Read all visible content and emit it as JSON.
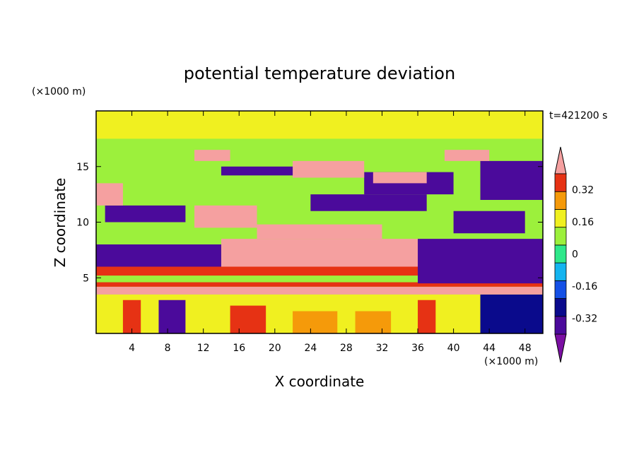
{
  "chart_data": {
    "type": "heatmap",
    "title": "potential temperature deviation",
    "xlabel": "X coordinate",
    "ylabel": "Z coordinate",
    "x_unit": "(×1000 m)",
    "y_unit": "(×1000 m)",
    "time_label": "t=421200 s",
    "xlim": [
      0,
      50
    ],
    "ylim": [
      0,
      20
    ],
    "x_ticks": [
      4,
      8,
      12,
      16,
      20,
      24,
      28,
      32,
      36,
      40,
      44,
      48
    ],
    "y_ticks": [
      5,
      10,
      15
    ],
    "colorbar": {
      "levels": [
        -0.4,
        -0.32,
        -0.24,
        -0.16,
        -0.08,
        0,
        0.08,
        0.16,
        0.24,
        0.32,
        0.4
      ],
      "colors": [
        "#7b0fa3",
        "#4b0a9b",
        "#0a0a8c",
        "#1450e6",
        "#14b4f0",
        "#2ee88a",
        "#9cf03c",
        "#f0f020",
        "#f59a0a",
        "#e63214",
        "#f5a0a0"
      ],
      "labels": [
        "0.32",
        "0.16",
        "0",
        "-0.16",
        "-0.32"
      ],
      "label_values": [
        0.32,
        0.16,
        0,
        -0.16,
        -0.32
      ],
      "extend": "both"
    },
    "regions": [
      {
        "x0": 0,
        "x1": 50,
        "z0": 0,
        "z1": 20,
        "value": 0.02
      },
      {
        "x0": 0,
        "x1": 50,
        "z0": 0,
        "z1": 3.5,
        "value": 0.1
      },
      {
        "x0": 3,
        "x1": 5,
        "z0": 0,
        "z1": 3,
        "value": 0.3
      },
      {
        "x0": 15,
        "x1": 19,
        "z0": 0,
        "z1": 2.5,
        "value": 0.3
      },
      {
        "x0": 36,
        "x1": 38,
        "z0": 0,
        "z1": 3,
        "value": 0.3
      },
      {
        "x0": 22,
        "x1": 27,
        "z0": 0,
        "z1": 2,
        "value": 0.18
      },
      {
        "x0": 29,
        "x1": 33,
        "z0": 0,
        "z1": 2,
        "value": 0.18
      },
      {
        "x0": 7,
        "x1": 10,
        "z0": 0,
        "z1": 3,
        "value": -0.36
      },
      {
        "x0": 43,
        "x1": 50,
        "z0": 0,
        "z1": 3.5,
        "value": -0.3
      },
      {
        "x0": 0,
        "x1": 50,
        "z0": 3.5,
        "z1": 4.2,
        "value": 0.42
      },
      {
        "x0": 0,
        "x1": 50,
        "z0": 4.2,
        "z1": 4.6,
        "value": 0.28
      },
      {
        "x0": 0,
        "x1": 50,
        "z0": 5.2,
        "z1": 6.0,
        "value": 0.28
      },
      {
        "x0": 14,
        "x1": 44,
        "z0": 6.0,
        "z1": 8.5,
        "value": 0.42
      },
      {
        "x0": 18,
        "x1": 32,
        "z0": 8.5,
        "z1": 9.8,
        "value": 0.42
      },
      {
        "x0": 11,
        "x1": 18,
        "z0": 9.5,
        "z1": 11.5,
        "value": 0.42
      },
      {
        "x0": 0,
        "x1": 14,
        "z0": 6.0,
        "z1": 8.0,
        "value": -0.36
      },
      {
        "x0": 36,
        "x1": 50,
        "z0": 4.5,
        "z1": 8.5,
        "value": -0.36
      },
      {
        "x0": 1,
        "x1": 10,
        "z0": 10.0,
        "z1": 11.5,
        "value": -0.36
      },
      {
        "x0": 24,
        "x1": 37,
        "z0": 11.0,
        "z1": 12.5,
        "value": -0.36
      },
      {
        "x0": 40,
        "x1": 48,
        "z0": 9.0,
        "z1": 11.0,
        "value": -0.36
      },
      {
        "x0": 30,
        "x1": 40,
        "z0": 12.5,
        "z1": 14.5,
        "value": -0.36
      },
      {
        "x0": 43,
        "x1": 50,
        "z0": 12.0,
        "z1": 15.5,
        "value": -0.36
      },
      {
        "x0": 14,
        "x1": 23,
        "z0": 14.2,
        "z1": 15.0,
        "value": -0.36
      },
      {
        "x0": 22,
        "x1": 30,
        "z0": 14.0,
        "z1": 15.5,
        "value": 0.42
      },
      {
        "x0": 31,
        "x1": 37,
        "z0": 13.5,
        "z1": 14.5,
        "value": 0.42
      },
      {
        "x0": 0,
        "x1": 3,
        "z0": 11.5,
        "z1": 13.5,
        "value": 0.42
      },
      {
        "x0": 11,
        "x1": 15,
        "z0": 15.5,
        "z1": 16.5,
        "value": 0.42
      },
      {
        "x0": 39,
        "x1": 44,
        "z0": 15.5,
        "z1": 16.5,
        "value": 0.42
      },
      {
        "x0": 0,
        "x1": 50,
        "z0": 17.5,
        "z1": 20,
        "value": 0.1
      }
    ]
  }
}
